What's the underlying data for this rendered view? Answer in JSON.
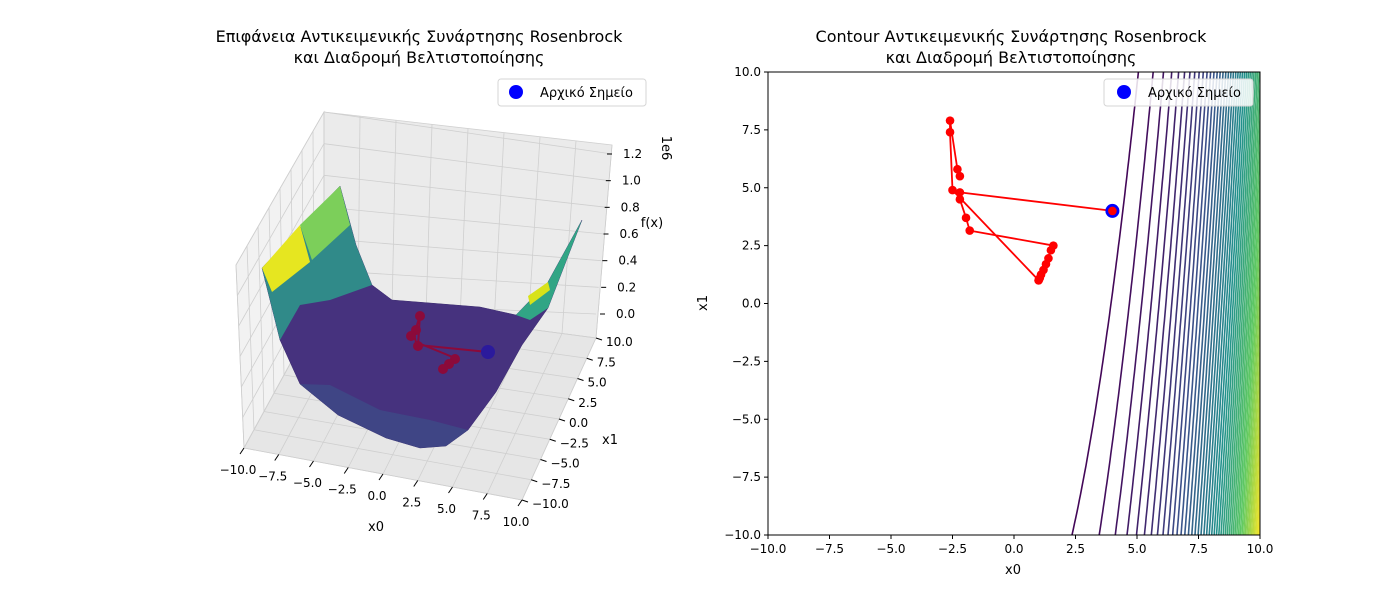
{
  "chart_data": [
    {
      "type": "surface3d",
      "title_line1": "Επιφάνεια Αντικειμενικής Συνάρτησης Rosenbrock",
      "title_line2": "και Διαδρομή Βελτιστοποίησης",
      "xlabel": "x0",
      "ylabel": "x1",
      "zlabel": "f(x)",
      "z_offset_label": "1e6",
      "xlim": [
        -10,
        10
      ],
      "ylim": [
        -10,
        10
      ],
      "zlim": [
        0,
        1.2
      ],
      "x_ticks": [
        "−10.0",
        "−7.5",
        "−5.0",
        "−2.5",
        "0.0",
        "2.5",
        "5.0",
        "7.5",
        "10.0"
      ],
      "y_ticks": [
        "−10.0",
        "−7.5",
        "−5.0",
        "−2.5",
        "0.0",
        "2.5",
        "5.0",
        "7.5",
        "10.0"
      ],
      "z_ticks": [
        "0.0",
        "0.2",
        "0.4",
        "0.6",
        "0.8",
        "1.0",
        "1.2"
      ],
      "colormap": "viridis",
      "legend": {
        "label": "Αρχικό Σημείο",
        "position": "upper right",
        "marker_color": "#0000ff"
      },
      "path_color": "#ff0000",
      "start_point": {
        "x": 4.0,
        "y": 4.0
      }
    },
    {
      "type": "contour",
      "title_line1": "Contour Αντικειμενικής Συνάρτησης Rosenbrock",
      "title_line2": "και Διαδρομή Βελτιστοποίησης",
      "xlabel": "x0",
      "ylabel": "x1",
      "xlim": [
        -10,
        10
      ],
      "ylim": [
        -10,
        10
      ],
      "x_ticks": [
        "−10.0",
        "−7.5",
        "−5.0",
        "−2.5",
        "0.0",
        "2.5",
        "5.0",
        "7.5",
        "10.0"
      ],
      "y_ticks": [
        "−10.0",
        "−7.5",
        "−5.0",
        "−2.5",
        "0.0",
        "2.5",
        "5.0",
        "7.5",
        "10.0"
      ],
      "colormap": "viridis",
      "legend": {
        "label": "Αρχικό Σημείο",
        "position": "upper right",
        "marker_color": "#0000ff"
      },
      "path_color": "#ff0000",
      "start_point": {
        "x": 4.0,
        "y": 4.0
      },
      "path": [
        {
          "x": 4.0,
          "y": 4.0
        },
        {
          "x": -2.2,
          "y": 4.8
        },
        {
          "x": -2.2,
          "y": 4.5
        },
        {
          "x": -1.95,
          "y": 3.7
        },
        {
          "x": -1.8,
          "y": 3.15
        },
        {
          "x": 1.6,
          "y": 2.5
        },
        {
          "x": 1.5,
          "y": 2.3
        },
        {
          "x": 1.4,
          "y": 1.95
        },
        {
          "x": 1.3,
          "y": 1.7
        },
        {
          "x": 1.2,
          "y": 1.45
        },
        {
          "x": 1.1,
          "y": 1.25
        },
        {
          "x": 1.05,
          "y": 1.1
        },
        {
          "x": 1.0,
          "y": 1.0
        },
        {
          "x": 1.0,
          "y": 1.0
        },
        {
          "x": -2.5,
          "y": 4.9
        },
        {
          "x": -2.6,
          "y": 7.4
        },
        {
          "x": -2.6,
          "y": 7.9
        },
        {
          "x": -2.3,
          "y": 5.8
        },
        {
          "x": -2.2,
          "y": 5.5
        }
      ]
    }
  ]
}
